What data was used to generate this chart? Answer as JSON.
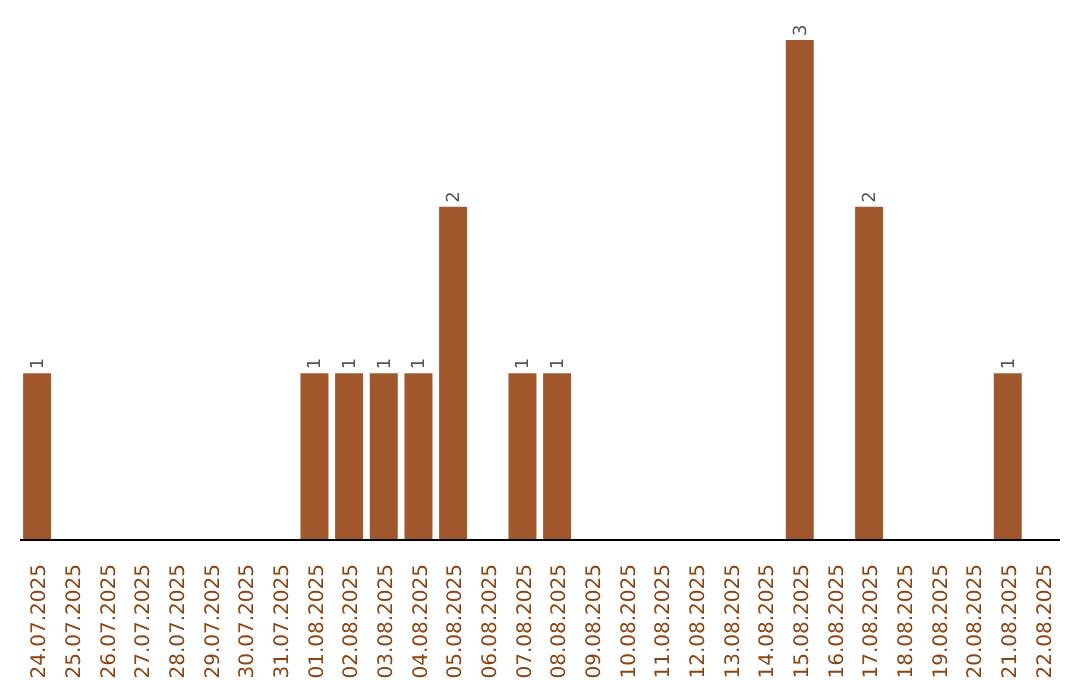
{
  "chart_data": {
    "type": "bar",
    "categories": [
      "24.07.2025",
      "25.07.2025",
      "26.07.2025",
      "27.07.2025",
      "28.07.2025",
      "29.07.2025",
      "30.07.2025",
      "31.07.2025",
      "01.08.2025",
      "02.08.2025",
      "03.08.2025",
      "04.08.2025",
      "05.08.2025",
      "06.08.2025",
      "07.08.2025",
      "08.08.2025",
      "09.08.2025",
      "10.08.2025",
      "11.08.2025",
      "12.08.2025",
      "13.08.2025",
      "14.08.2025",
      "15.08.2025",
      "16.08.2025",
      "17.08.2025",
      "18.08.2025",
      "19.08.2025",
      "20.08.2025",
      "21.08.2025",
      "22.08.2025"
    ],
    "values": [
      1,
      0,
      0,
      0,
      0,
      0,
      0,
      0,
      1,
      1,
      1,
      1,
      2,
      0,
      1,
      1,
      0,
      0,
      0,
      0,
      0,
      0,
      3,
      0,
      2,
      0,
      0,
      0,
      1,
      0
    ],
    "value_labels": [
      "1",
      null,
      null,
      null,
      null,
      null,
      null,
      null,
      "1",
      "1",
      "1",
      "1",
      "2",
      null,
      "1",
      "1",
      null,
      null,
      null,
      null,
      null,
      null,
      "3",
      null,
      "2",
      null,
      null,
      null,
      "1",
      null
    ],
    "color": "#a0572b",
    "grid": false,
    "legend": false
  }
}
